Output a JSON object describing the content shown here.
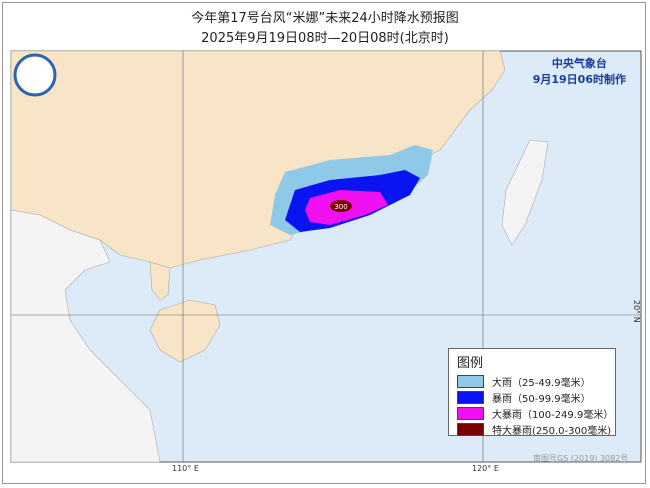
{
  "title": {
    "line1": "今年第17号台风“米娜”未来24小时降水预报图",
    "line2": "2025年9月19日08时—20日08时(北京时)"
  },
  "agency": {
    "name": "中央气象台",
    "issued": "9月19日06时制作"
  },
  "map": {
    "max_label": "300",
    "ticks": {
      "lon110": "110° E",
      "lon120": "120° E",
      "lat20": "20° N"
    },
    "credit": "审图号GS (2019) 3082号",
    "colors": {
      "land": "#f8e4c6",
      "sea": "#dcebf7",
      "foreign_land": "#f4f4f4"
    }
  },
  "legend": {
    "title": "图例",
    "items": [
      {
        "label": "大雨（25-49.9毫米）",
        "color": "#8fc9e8"
      },
      {
        "label": "暴雨（50-99.9毫米）",
        "color": "#0a14f0"
      },
      {
        "label": "大暴雨（100-249.9毫米）",
        "color": "#f010f0"
      },
      {
        "label": "特大暴雨(250.0-300毫米)",
        "color": "#7a0000"
      }
    ]
  }
}
